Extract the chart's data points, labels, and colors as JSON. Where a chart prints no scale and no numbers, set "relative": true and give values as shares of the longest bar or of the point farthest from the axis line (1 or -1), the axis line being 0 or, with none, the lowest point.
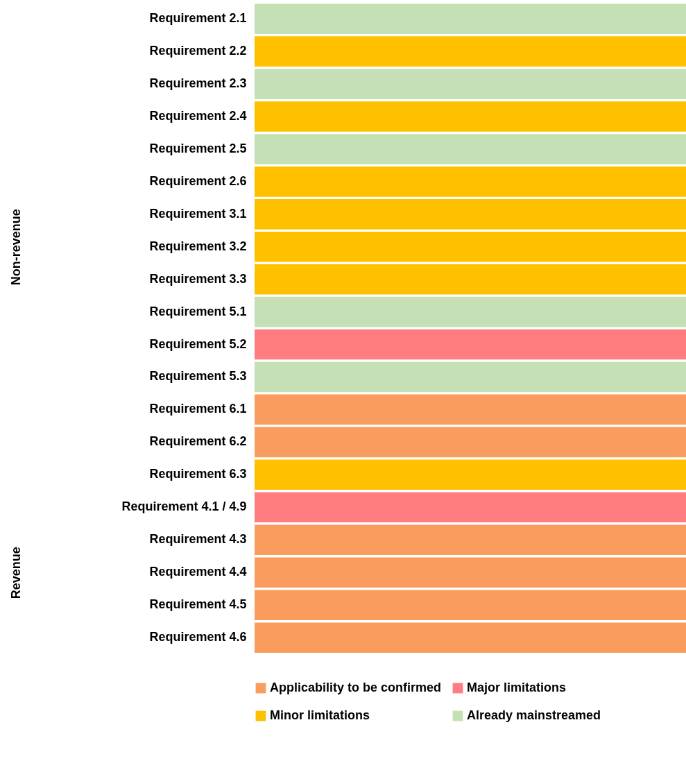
{
  "chart_data": [
    {
      "type": "bar",
      "orientation": "horizontal",
      "relative": true,
      "ylabel": "Non-revenue",
      "legend": "bottom",
      "categories": [
        "Requirement 2.1",
        "Requirement 2.2",
        "Requirement 2.3",
        "Requirement 2.4",
        "Requirement 2.5",
        "Requirement 2.6",
        "Requirement 3.1",
        "Requirement 3.2",
        "Requirement 3.3",
        "Requirement 5.1",
        "Requirement 5.2",
        "Requirement 5.3",
        "Requirement 6.1",
        "Requirement 6.2",
        "Requirement 6.3"
      ],
      "series": [
        {
          "name": "Applicability to be confirmed",
          "color": "#fa9c5e",
          "values": [
            null,
            null,
            null,
            null,
            null,
            null,
            null,
            null,
            null,
            null,
            null,
            null,
            1,
            1,
            null
          ]
        },
        {
          "name": "Major limitations",
          "color": "#ff7c80",
          "values": [
            null,
            null,
            null,
            null,
            null,
            null,
            null,
            null,
            null,
            null,
            1,
            null,
            null,
            null,
            null
          ]
        },
        {
          "name": "Minor limitations",
          "color": "#ffc000",
          "values": [
            null,
            1,
            null,
            1,
            null,
            1,
            1,
            1,
            1,
            null,
            null,
            null,
            null,
            null,
            1
          ]
        },
        {
          "name": "Already mainstreamed",
          "color": "#c5e0b4",
          "values": [
            1,
            null,
            1,
            null,
            1,
            null,
            null,
            null,
            null,
            1,
            null,
            1,
            null,
            null,
            null
          ]
        }
      ]
    },
    {
      "type": "bar",
      "orientation": "horizontal",
      "relative": true,
      "ylabel": "Revenue",
      "legend": "bottom",
      "categories": [
        "Requirement 4.1 / 4.9",
        "Requirement 4.3",
        "Requirement 4.4",
        "Requirement 4.5",
        "Requirement 4.6"
      ],
      "series": [
        {
          "name": "Applicability to be confirmed",
          "color": "#fa9c5e",
          "values": [
            null,
            1,
            1,
            1,
            1
          ]
        },
        {
          "name": "Major limitations",
          "color": "#ff7c80",
          "values": [
            1,
            null,
            null,
            null,
            null
          ]
        },
        {
          "name": "Minor limitations",
          "color": "#ffc000",
          "values": [
            null,
            null,
            null,
            null,
            null
          ]
        },
        {
          "name": "Already mainstreamed",
          "color": "#c5e0b4",
          "values": [
            null,
            null,
            null,
            null,
            null
          ]
        }
      ]
    }
  ]
}
